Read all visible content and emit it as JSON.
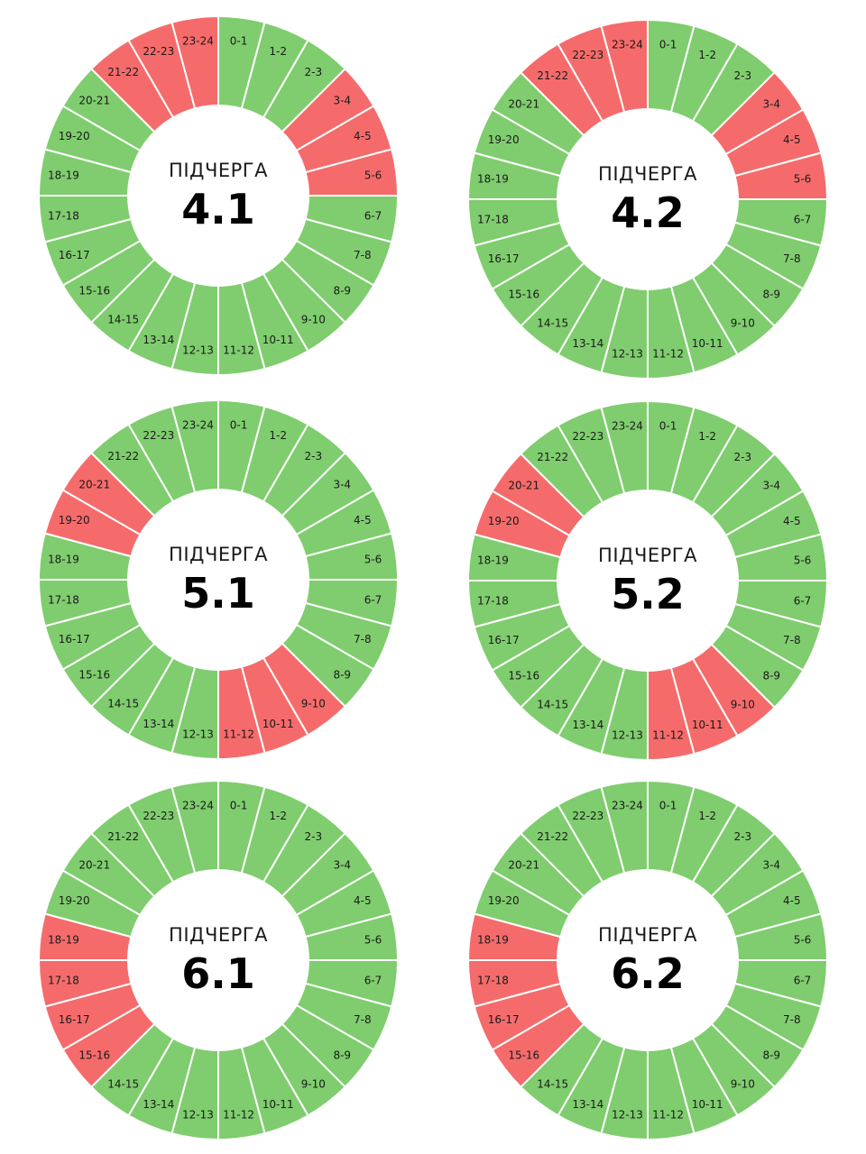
{
  "colors": {
    "on": "#7fcd6e",
    "off": "#f56b6b"
  },
  "hours": [
    "0-1",
    "1-2",
    "2-3",
    "3-4",
    "4-5",
    "5-6",
    "6-7",
    "7-8",
    "8-9",
    "9-10",
    "10-11",
    "11-12",
    "12-13",
    "13-14",
    "14-15",
    "15-16",
    "16-17",
    "17-18",
    "18-19",
    "19-20",
    "20-21",
    "21-22",
    "22-23",
    "23-24"
  ],
  "chart_data": [
    {
      "type": "pie",
      "label": "ПІДЧЕРГА",
      "number": "4.1",
      "outage_hours": [
        "3-4",
        "4-5",
        "5-6",
        "21-22",
        "22-23",
        "23-24"
      ]
    },
    {
      "type": "pie",
      "label": "ПІДЧЕРГА",
      "number": "4.2",
      "outage_hours": [
        "3-4",
        "4-5",
        "5-6",
        "21-22",
        "22-23",
        "23-24"
      ]
    },
    {
      "type": "pie",
      "label": "ПІДЧЕРГА",
      "number": "5.1",
      "outage_hours": [
        "9-10",
        "10-11",
        "11-12",
        "19-20",
        "20-21"
      ]
    },
    {
      "type": "pie",
      "label": "ПІДЧЕРГА",
      "number": "5.2",
      "outage_hours": [
        "9-10",
        "10-11",
        "11-12",
        "19-20",
        "20-21"
      ]
    },
    {
      "type": "pie",
      "label": "ПІДЧЕРГА",
      "number": "6.1",
      "outage_hours": [
        "15-16",
        "16-17",
        "17-18",
        "18-19"
      ]
    },
    {
      "type": "pie",
      "label": "ПІДЧЕРГА",
      "number": "6.2",
      "outage_hours": [
        "15-16",
        "16-17",
        "17-18",
        "18-19"
      ]
    }
  ]
}
